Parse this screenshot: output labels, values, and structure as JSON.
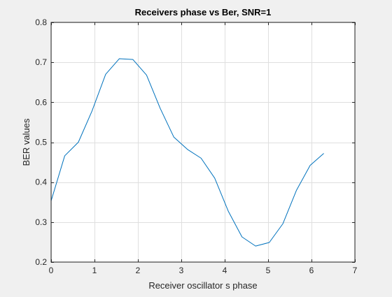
{
  "chart_data": {
    "type": "line",
    "title": "Receivers phase vs Ber, SNR=1",
    "xlabel": "Receiver oscillator s phase",
    "ylabel": "BER values",
    "xlim": [
      0,
      7
    ],
    "ylim": [
      0.2,
      0.8
    ],
    "xticks": [
      0,
      1,
      2,
      3,
      4,
      5,
      6,
      7
    ],
    "yticks": [
      0.2,
      0.3,
      0.4,
      0.5,
      0.6,
      0.7,
      0.8
    ],
    "xtick_labels": [
      "0",
      "1",
      "2",
      "3",
      "4",
      "5",
      "6",
      "7"
    ],
    "ytick_labels": [
      "0.2",
      "0.3",
      "0.4",
      "0.5",
      "0.6",
      "0.7",
      "0.8"
    ],
    "grid": true,
    "series": [
      {
        "color": "#0072bd",
        "x": [
          0,
          0.314,
          0.628,
          0.942,
          1.257,
          1.571,
          1.885,
          2.199,
          2.513,
          2.827,
          3.142,
          3.456,
          3.77,
          4.084,
          4.398,
          4.712,
          5.027,
          5.341,
          5.655,
          5.969,
          6.283
        ],
        "y": [
          0.353,
          0.466,
          0.5,
          0.578,
          0.67,
          0.709,
          0.707,
          0.668,
          0.585,
          0.513,
          0.482,
          0.46,
          0.41,
          0.327,
          0.263,
          0.24,
          0.249,
          0.296,
          0.38,
          0.442,
          0.472
        ]
      }
    ]
  }
}
